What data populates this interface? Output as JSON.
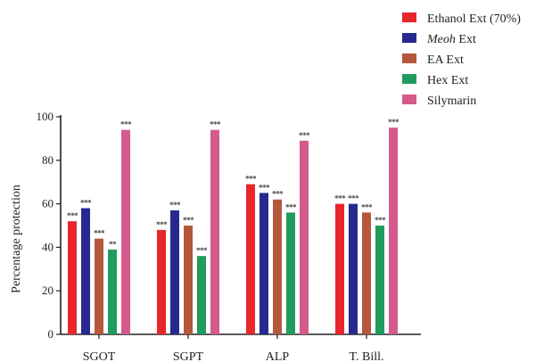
{
  "chart_data": {
    "type": "bar",
    "categories": [
      "SGOT",
      "SGPT",
      "ALP",
      "T. Bill."
    ],
    "series": [
      {
        "name": "Ethanol Ext (70%)",
        "name_italic": "",
        "name_rest": "Ethanol Ext (70%)",
        "color": "#e8262b",
        "values": [
          52,
          48,
          69,
          60
        ],
        "sig": [
          "***",
          "***",
          "***",
          "***"
        ]
      },
      {
        "name": "Meoh Ext",
        "name_italic": "Meoh",
        "name_rest": " Ext",
        "color": "#27298f",
        "values": [
          58,
          57,
          65,
          60
        ],
        "sig": [
          "***",
          "***",
          "***",
          "***"
        ]
      },
      {
        "name": "EA Ext",
        "name_italic": "",
        "name_rest": "EA Ext",
        "color": "#b5573c",
        "values": [
          44,
          50,
          62,
          56
        ],
        "sig": [
          "***",
          "***",
          "***",
          "***"
        ]
      },
      {
        "name": "Hex Ext",
        "name_italic": "",
        "name_rest": "Hex Ext",
        "color": "#1f9c5e",
        "values": [
          39,
          36,
          56,
          50
        ],
        "sig": [
          "**",
          "***",
          "***",
          "***"
        ]
      },
      {
        "name": "Silymarin",
        "name_italic": "",
        "name_rest": "Silymarin",
        "color": "#d45a8c",
        "values": [
          94,
          94,
          89,
          95
        ],
        "sig": [
          "***",
          "***",
          "***",
          "***"
        ]
      }
    ],
    "ylabel": "Percentage protection",
    "ylim": [
      0,
      100
    ],
    "yticks": [
      0,
      20,
      40,
      60,
      80,
      100
    ],
    "legend_position": "top-right",
    "grid": false
  }
}
